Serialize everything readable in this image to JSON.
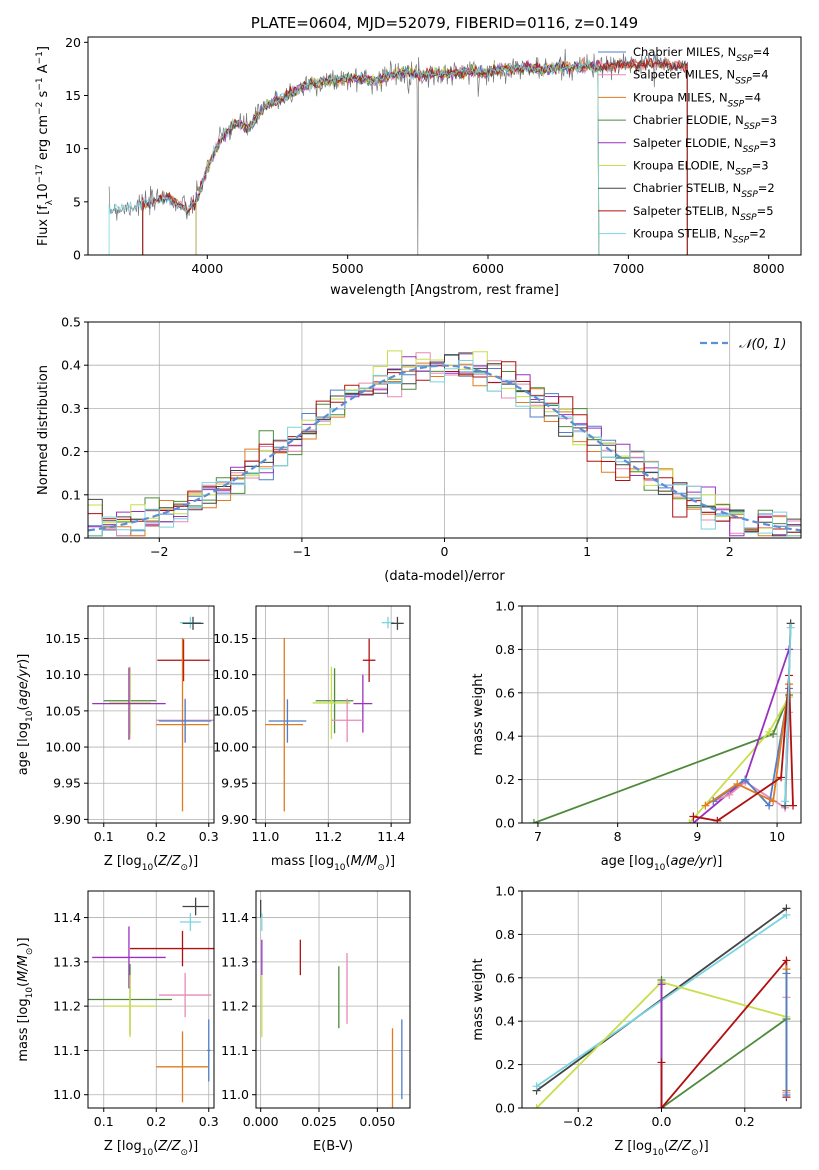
{
  "colors": {
    "chabrier_miles": "#4f7fc8",
    "salpeter_miles": "#e88ab5",
    "kroupa_miles": "#e07b1f",
    "chabrier_elodie": "#4f8a3c",
    "salpeter_elodie": "#9b30c0",
    "kroupa_elodie": "#c8de4a",
    "chabrier_stelib": "#444444",
    "salpeter_stelib": "#b01010",
    "kroupa_stelib": "#79d4e0",
    "normal": "#5b8fd6",
    "data": "#777777"
  },
  "chart_data": [
    {
      "id": "spectrum",
      "type": "line",
      "title": "PLATE=0604, MJD=52079, FIBERID=0116, z=0.149",
      "xlabel": "wavelength [Angstrom, rest frame]",
      "ylabel": "Flux [fλ10⁻¹⁷ erg cm⁻² s⁻¹ A⁻¹]",
      "xlim": [
        3150,
        8230
      ],
      "ylim": [
        0,
        20.5
      ],
      "xticks": [
        4000,
        5000,
        6000,
        7000,
        8000
      ],
      "yticks": [
        0,
        5,
        10,
        15,
        20
      ],
      "legend": {
        "position": "top-right",
        "entries": [
          {
            "key": "chabrier_miles",
            "label": "Chabrier MILES, N",
            "sub": "SSP",
            "tail": "=4"
          },
          {
            "key": "salpeter_miles",
            "label": "Salpeter MILES, N",
            "sub": "SSP",
            "tail": "=4"
          },
          {
            "key": "kroupa_miles",
            "label": "Kroupa MILES, N",
            "sub": "SSP",
            "tail": "=4"
          },
          {
            "key": "chabrier_elodie",
            "label": "Chabrier ELODIE, N",
            "sub": "SSP",
            "tail": "=3"
          },
          {
            "key": "salpeter_elodie",
            "label": "Salpeter ELODIE, N",
            "sub": "SSP",
            "tail": "=3"
          },
          {
            "key": "kroupa_elodie",
            "label": "Kroupa ELODIE, N",
            "sub": "SSP",
            "tail": "=3"
          },
          {
            "key": "chabrier_stelib",
            "label": "Chabrier STELIB, N",
            "sub": "SSP",
            "tail": "=2"
          },
          {
            "key": "salpeter_stelib",
            "label": "Salpeter STELIB, N",
            "sub": "SSP",
            "tail": "=5"
          },
          {
            "key": "kroupa_stelib",
            "label": "Kroupa STELIB, N",
            "sub": "SSP",
            "tail": "=2"
          }
        ]
      },
      "data_points": [
        [
          3300,
          4.3
        ],
        [
          3400,
          4.4
        ],
        [
          3500,
          4.7
        ],
        [
          3600,
          4.9
        ],
        [
          3700,
          5.6
        ],
        [
          3800,
          4.7
        ],
        [
          3860,
          4.2
        ],
        [
          3920,
          5.0
        ],
        [
          4000,
          8.2
        ],
        [
          4100,
          11.0
        ],
        [
          4200,
          12.4
        ],
        [
          4300,
          12.0
        ],
        [
          4400,
          13.8
        ],
        [
          4500,
          14.6
        ],
        [
          4600,
          15.2
        ],
        [
          4700,
          16.0
        ],
        [
          4800,
          16.2
        ],
        [
          4900,
          16.4
        ],
        [
          5000,
          16.6
        ],
        [
          5100,
          16.6
        ],
        [
          5200,
          16.4
        ],
        [
          5300,
          16.9
        ],
        [
          5400,
          17.2
        ],
        [
          5500,
          16.9
        ],
        [
          5600,
          17.1
        ],
        [
          5700,
          17.0
        ],
        [
          5800,
          17.2
        ],
        [
          5900,
          17.3
        ],
        [
          6000,
          17.1
        ],
        [
          6100,
          17.5
        ],
        [
          6200,
          17.6
        ],
        [
          6300,
          17.6
        ],
        [
          6400,
          17.4
        ],
        [
          6500,
          17.7
        ],
        [
          6600,
          17.6
        ],
        [
          6700,
          17.8
        ],
        [
          6800,
          17.6
        ],
        [
          6900,
          17.8
        ],
        [
          7000,
          17.9
        ],
        [
          7100,
          18.0
        ],
        [
          7200,
          18.0
        ],
        [
          7300,
          17.8
        ],
        [
          7400,
          17.7
        ]
      ],
      "model_starts": {
        "chabrier_miles": 3540,
        "salpeter_miles": 3540,
        "kroupa_miles": 3540,
        "chabrier_elodie": 3920,
        "salpeter_elodie": 3920,
        "kroupa_elodie": 3920,
        "chabrier_stelib": 3540,
        "salpeter_stelib": 3540,
        "kroupa_stelib": 3300
      },
      "model_ends": {
        "chabrier_miles": 7420,
        "salpeter_miles": 7420,
        "kroupa_miles": 7420,
        "chabrier_elodie": 6790,
        "salpeter_elodie": 6790,
        "kroupa_elodie": 6790,
        "chabrier_stelib": 7420,
        "salpeter_stelib": 7420,
        "kroupa_stelib": 6790
      }
    },
    {
      "id": "residuals",
      "type": "histogram",
      "xlabel": "(data-model)/error",
      "ylabel": "Normed distribution",
      "xlim": [
        -2.5,
        2.5
      ],
      "ylim": [
        0,
        0.5
      ],
      "xticks": [
        -2,
        -1,
        0,
        1,
        2
      ],
      "yticks": [
        0,
        0.1,
        0.2,
        0.3,
        0.4,
        0.5
      ],
      "legend": {
        "position": "top-right",
        "label": "𝒩(0, 1)"
      },
      "bin_width": 0.1
    },
    {
      "id": "age_vs_Z",
      "type": "errorbar",
      "xlabel": "Z [log₁₀(Z/Z⊙)]",
      "ylabel": "age  [log₁₀(age/yr)]",
      "xlim": [
        0.07,
        0.31
      ],
      "ylim": [
        9.895,
        10.195
      ],
      "xticks": [
        0.1,
        0.2,
        0.3
      ],
      "yticks": [
        9.9,
        9.95,
        10.0,
        10.05,
        10.1,
        10.15
      ],
      "points": [
        {
          "key": "kroupa_stelib",
          "x": 0.265,
          "xerr": 0.02,
          "y": 10.172,
          "yerr": 0.008
        },
        {
          "key": "chabrier_stelib",
          "x": 0.27,
          "xerr": 0.02,
          "y": 10.171,
          "yerr": 0.009
        },
        {
          "key": "salpeter_stelib",
          "x": 0.252,
          "xerr": 0.05,
          "y": 10.12,
          "yerr": 0.029
        },
        {
          "key": "chabrier_elodie",
          "x": 0.15,
          "xerr": 0.05,
          "y": 10.064,
          "yerr": 0.045
        },
        {
          "key": "kroupa_elodie",
          "x": 0.15,
          "xerr": 0.04,
          "y": 10.061,
          "yerr": 0.05
        },
        {
          "key": "salpeter_elodie",
          "x": 0.148,
          "xerr": 0.07,
          "y": 10.06,
          "yerr": 0.05
        },
        {
          "key": "salpeter_miles",
          "x": 0.255,
          "xerr": 0.055,
          "y": 10.037,
          "yerr": 0.03
        },
        {
          "key": "kroupa_miles",
          "x": 0.25,
          "xerr": 0.05,
          "y": 10.031,
          "yerr": 0.12
        },
        {
          "key": "chabrier_miles",
          "x": 0.255,
          "xerr": 0.05,
          "y": 10.036,
          "yerr": 0.03
        }
      ]
    },
    {
      "id": "age_vs_mass",
      "type": "errorbar",
      "xlabel": "mass [log₁₀(M/M⊙)]",
      "xlim": [
        10.97,
        11.46
      ],
      "ylim": [
        9.895,
        10.195
      ],
      "xticks": [
        11.0,
        11.2,
        11.4
      ],
      "yticks": [
        9.9,
        9.95,
        10.0,
        10.05,
        10.1,
        10.15
      ],
      "points": [
        {
          "key": "kroupa_stelib",
          "x": 11.39,
          "xerr": 0.02,
          "y": 10.172,
          "yerr": 0.008
        },
        {
          "key": "chabrier_stelib",
          "x": 11.42,
          "xerr": 0.02,
          "y": 10.171,
          "yerr": 0.009
        },
        {
          "key": "salpeter_stelib",
          "x": 11.33,
          "xerr": 0.02,
          "y": 10.12,
          "yerr": 0.03
        },
        {
          "key": "chabrier_elodie",
          "x": 11.22,
          "xerr": 0.06,
          "y": 10.064,
          "yerr": 0.045
        },
        {
          "key": "kroupa_elodie",
          "x": 11.21,
          "xerr": 0.06,
          "y": 10.061,
          "yerr": 0.05
        },
        {
          "key": "salpeter_elodie",
          "x": 11.31,
          "xerr": 0.03,
          "y": 10.06,
          "yerr": 0.04
        },
        {
          "key": "salpeter_miles",
          "x": 11.26,
          "xerr": 0.05,
          "y": 10.037,
          "yerr": 0.03
        },
        {
          "key": "kroupa_miles",
          "x": 11.06,
          "xerr": 0.06,
          "y": 10.031,
          "yerr": 0.12
        },
        {
          "key": "chabrier_miles",
          "x": 11.07,
          "xerr": 0.06,
          "y": 10.036,
          "yerr": 0.03
        }
      ]
    },
    {
      "id": "mass_weight_vs_age",
      "type": "line",
      "xlabel": "age  [log₁₀(age/yr)]",
      "ylabel": "mass weight",
      "xlim": [
        6.8,
        10.3
      ],
      "ylim": [
        0,
        1
      ],
      "xticks": [
        7,
        8,
        9,
        10
      ],
      "yticks": [
        0,
        0.2,
        0.4,
        0.6,
        0.8,
        1.0
      ],
      "series": [
        {
          "key": "chabrier_elodie",
          "x": [
            6.95,
            9.95,
            10.15
          ],
          "y": [
            0.0,
            0.41,
            0.59
          ]
        },
        {
          "key": "kroupa_elodie",
          "x": [
            8.9,
            9.9,
            10.15
          ],
          "y": [
            0.0,
            0.42,
            0.58
          ]
        },
        {
          "key": "salpeter_elodie",
          "x": [
            8.95,
            9.6,
            10.15
          ],
          "y": [
            0.0,
            0.2,
            0.8
          ]
        },
        {
          "key": "salpeter_miles",
          "x": [
            9.2,
            9.4,
            9.6,
            10.1,
            10.15
          ],
          "y": [
            0.1,
            0.13,
            0.19,
            0.07,
            0.51
          ]
        },
        {
          "key": "chabrier_miles",
          "x": [
            9.2,
            9.6,
            9.9,
            10.15
          ],
          "y": [
            0.1,
            0.2,
            0.08,
            0.62
          ]
        },
        {
          "key": "kroupa_miles",
          "x": [
            9.1,
            9.5,
            9.95,
            10.15
          ],
          "y": [
            0.08,
            0.18,
            0.1,
            0.64
          ]
        },
        {
          "key": "salpeter_stelib",
          "x": [
            8.95,
            9.25,
            10.05,
            10.15,
            10.2
          ],
          "y": [
            0.03,
            0.01,
            0.21,
            0.68,
            0.08
          ]
        },
        {
          "key": "chabrier_stelib",
          "x": [
            10.1,
            10.17
          ],
          "y": [
            0.08,
            0.92
          ]
        },
        {
          "key": "kroupa_stelib",
          "x": [
            10.1,
            10.17
          ],
          "y": [
            0.1,
            0.9
          ]
        }
      ]
    },
    {
      "id": "mass_vs_Z",
      "type": "errorbar",
      "xlabel": "Z [log₁₀(Z/Z⊙)]",
      "ylabel": "mass [log₁₀(M/M⊙)]",
      "xlim": [
        0.07,
        0.31
      ],
      "ylim": [
        10.97,
        11.46
      ],
      "xticks": [
        0.1,
        0.2,
        0.3
      ],
      "yticks": [
        11.0,
        11.1,
        11.2,
        11.3,
        11.4
      ],
      "points": [
        {
          "key": "chabrier_stelib",
          "x": 0.275,
          "xerr": 0.025,
          "y": 11.425,
          "yerr": 0.02
        },
        {
          "key": "kroupa_stelib",
          "x": 0.265,
          "xerr": 0.02,
          "y": 11.39,
          "yerr": 0.02
        },
        {
          "key": "salpeter_stelib",
          "x": 0.25,
          "xerr": 0.1,
          "y": 11.33,
          "yerr": 0.04
        },
        {
          "key": "salpeter_elodie",
          "x": 0.148,
          "xerr": 0.07,
          "y": 11.31,
          "yerr": 0.07
        },
        {
          "key": "salpeter_miles",
          "x": 0.255,
          "xerr": 0.05,
          "y": 11.225,
          "yerr": 0.05
        },
        {
          "key": "chabrier_elodie",
          "x": 0.15,
          "xerr": 0.08,
          "y": 11.215,
          "yerr": 0.08
        },
        {
          "key": "kroupa_elodie",
          "x": 0.15,
          "xerr": 0.05,
          "y": 11.2,
          "yerr": 0.07
        },
        {
          "key": "kroupa_miles",
          "x": 0.25,
          "xerr": 0.05,
          "y": 11.063,
          "yerr": 0.08
        },
        {
          "key": "chabrier_miles",
          "x": 0.3,
          "xerr": 0.003,
          "y": 11.1,
          "yerr": 0.07
        }
      ]
    },
    {
      "id": "mass_vs_ebv",
      "type": "errorbar",
      "xlabel": "E(B-V)",
      "xlim": [
        -0.002,
        0.064
      ],
      "ylim": [
        10.97,
        11.46
      ],
      "xticks": [
        0.0,
        0.025,
        0.05
      ],
      "xtick_labels": [
        "0.000",
        "0.025",
        "0.050"
      ],
      "yticks": [
        11.0,
        11.1,
        11.2,
        11.3,
        11.4
      ],
      "points": [
        {
          "key": "chabrier_stelib",
          "x": 0.0,
          "y": 11.42,
          "yerr": 0.02
        },
        {
          "key": "kroupa_stelib",
          "x": 0.0005,
          "y": 11.39,
          "yerr": 0.02
        },
        {
          "key": "salpeter_elodie",
          "x": 0.0005,
          "y": 11.31,
          "yerr": 0.04
        },
        {
          "key": "kroupa_elodie",
          "x": 0.0005,
          "y": 11.2,
          "yerr": 0.07
        },
        {
          "key": "salpeter_stelib",
          "x": 0.017,
          "y": 11.31,
          "yerr": 0.04
        },
        {
          "key": "chabrier_elodie",
          "x": 0.0335,
          "y": 11.22,
          "yerr": 0.07
        },
        {
          "key": "salpeter_miles",
          "x": 0.037,
          "y": 11.24,
          "yerr": 0.08
        },
        {
          "key": "kroupa_miles",
          "x": 0.0565,
          "y": 11.06,
          "yerr": 0.09
        },
        {
          "key": "chabrier_miles",
          "x": 0.0605,
          "y": 11.08,
          "yerr": 0.09
        }
      ]
    },
    {
      "id": "mass_weight_vs_Z",
      "type": "line",
      "xlabel": "Z [log₁₀(Z/Z⊙)]",
      "ylabel": "mass weight",
      "xlim": [
        -0.335,
        0.335
      ],
      "ylim": [
        0,
        1
      ],
      "xticks": [
        -0.2,
        0.0,
        0.2
      ],
      "yticks": [
        0,
        0.2,
        0.4,
        0.6,
        0.8,
        1.0
      ],
      "series": [
        {
          "key": "chabrier_stelib",
          "x": [
            -0.3,
            0.3
          ],
          "y": [
            0.08,
            0.92
          ]
        },
        {
          "key": "kroupa_stelib",
          "x": [
            -0.3,
            0.3
          ],
          "y": [
            0.1,
            0.89
          ]
        },
        {
          "key": "kroupa_elodie",
          "x": [
            -0.3,
            0.0,
            0.3
          ],
          "y": [
            0.0,
            0.58,
            0.42
          ]
        },
        {
          "key": "chabrier_elodie",
          "x": [
            0.0,
            0.0,
            0.3
          ],
          "y": [
            0.59,
            0.0,
            0.41
          ]
        },
        {
          "key": "salpeter_elodie",
          "x": [
            0.0,
            0.0
          ],
          "y": [
            0.0,
            0.57
          ]
        },
        {
          "key": "salpeter_stelib",
          "x": [
            0.0,
            0.0,
            0.3,
            0.3
          ],
          "y": [
            0.21,
            0.0,
            0.68,
            0.05
          ]
        },
        {
          "key": "salpeter_miles",
          "x": [
            0.3,
            0.3
          ],
          "y": [
            0.07,
            0.51
          ]
        },
        {
          "key": "kroupa_miles",
          "x": [
            0.3,
            0.3
          ],
          "y": [
            0.08,
            0.64
          ]
        },
        {
          "key": "chabrier_miles",
          "x": [
            0.3,
            0.3
          ],
          "y": [
            0.06,
            0.62
          ]
        }
      ]
    }
  ]
}
